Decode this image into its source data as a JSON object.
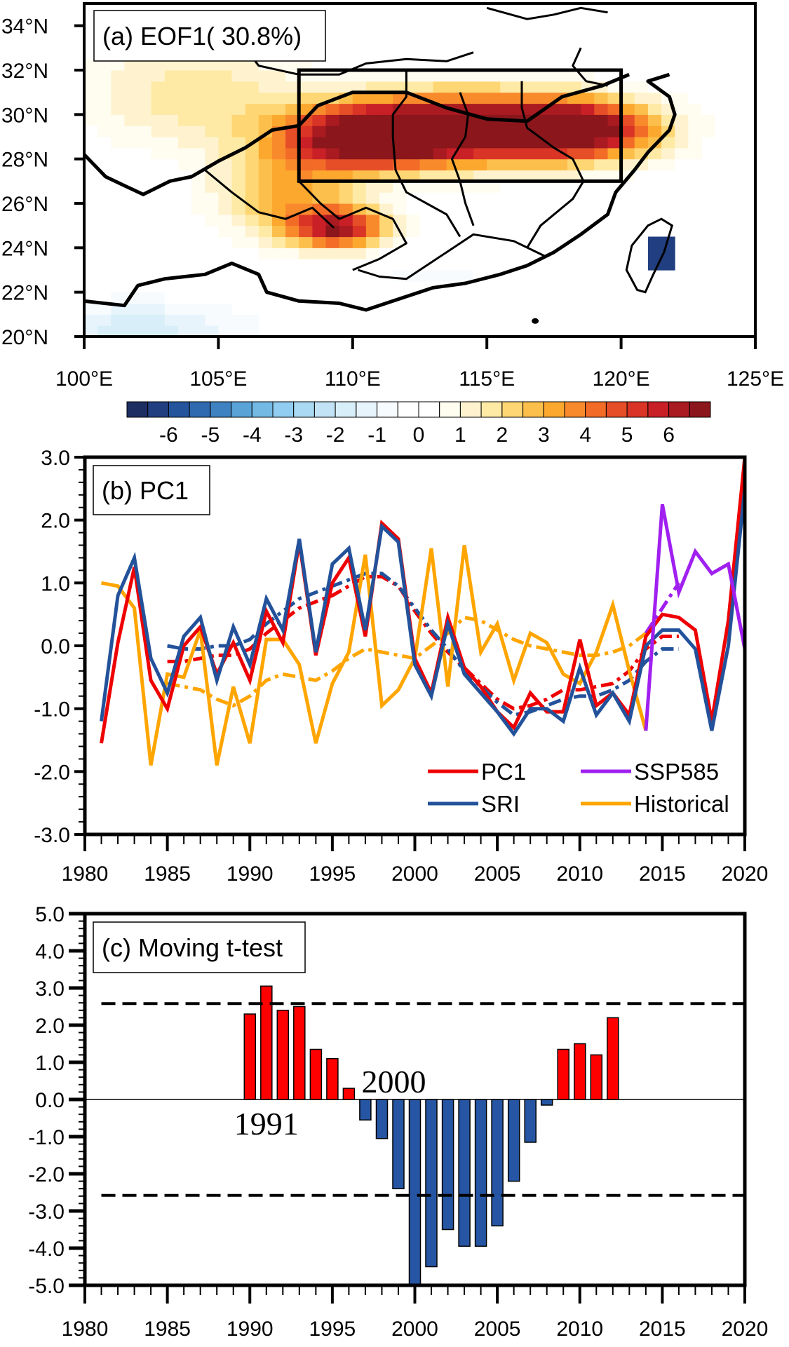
{
  "figure": {
    "panel_a": {
      "title": "(a) EOF1( 30.8%)",
      "lat_ticks": [
        "34°N",
        "32°N",
        "30°N",
        "28°N",
        "26°N",
        "24°N",
        "22°N",
        "20°N"
      ],
      "lon_ticks": [
        "100°E",
        "105°E",
        "110°E",
        "115°E",
        "120°E",
        "125°E"
      ],
      "colorbar": {
        "labels": [
          "-6",
          "-5",
          "-4",
          "-3",
          "-2",
          "-1",
          "0",
          "1",
          "2",
          "3",
          "4",
          "5",
          "6"
        ],
        "colors": [
          "#1d2e63",
          "#213f80",
          "#24559c",
          "#2f6ab0",
          "#3f82c1",
          "#5aa3d6",
          "#74b9e4",
          "#90cdf0",
          "#aad9f3",
          "#c2e3f6",
          "#d8eef9",
          "#e8f4fb",
          "#f7fbfe",
          "#ffffff",
          "#ffffff",
          "#fffcf0",
          "#fff3cf",
          "#feeaa5",
          "#fed673",
          "#fdbf4c",
          "#fca82f",
          "#f98a2c",
          "#f26b27",
          "#e64e27",
          "#d93425",
          "#c91f26",
          "#a91a21",
          "#8b161b"
        ]
      },
      "box_region": {
        "lon": [
          108,
          120
        ],
        "lat": [
          27,
          32
        ]
      }
    },
    "panel_b": {
      "title": "(b) PC1",
      "y_ticks": [
        "3.0",
        "2.0",
        "1.0",
        "0.0",
        "-1.0",
        "-2.0",
        "-3.0"
      ],
      "x_ticks": [
        "1980",
        "1985",
        "1990",
        "1995",
        "2000",
        "2005",
        "2010",
        "2015",
        "2020"
      ],
      "legend": [
        {
          "label": "PC1",
          "color": "#ee0000"
        },
        {
          "label": "SSP585",
          "color": "#a020f0"
        },
        {
          "label": "SRI",
          "color": "#23529b"
        },
        {
          "label": "Historical",
          "color": "#ffa500"
        }
      ]
    },
    "panel_c": {
      "title": "(c) Moving t-test",
      "y_ticks": [
        "5.0",
        "4.0",
        "3.0",
        "2.0",
        "1.0",
        "0.0",
        "-1.0",
        "-2.0",
        "-3.0",
        "-4.0",
        "-5.0"
      ],
      "x_ticks": [
        "1980",
        "1985",
        "1990",
        "1995",
        "2000",
        "2005",
        "2010",
        "2015",
        "2020"
      ],
      "annotations": [
        "1991",
        "2000"
      ],
      "positive_color": "#ff0000",
      "negative_color": "#2656a3"
    }
  },
  "chart_data": [
    {
      "type": "heatmap",
      "title": "(a) EOF1( 30.8%)",
      "xlabel": "",
      "ylabel": "",
      "xlim": [
        100,
        125
      ],
      "ylim": [
        20,
        35
      ],
      "x_ticks": [
        100,
        105,
        110,
        115,
        120,
        125
      ],
      "y_ticks": [
        20,
        22,
        24,
        26,
        28,
        30,
        32,
        34
      ],
      "colorbar_levels": [
        -6,
        -5,
        -4,
        -3,
        -2,
        -1,
        0,
        1,
        2,
        3,
        4,
        5,
        6
      ],
      "explained_variance_percent": 30.8,
      "highlight_box": {
        "lon": [
          108,
          120
        ],
        "lat": [
          27,
          32
        ]
      },
      "description": "Positive loading maximum (>6) along 28-31°N, 109-121°E; secondary maximum near 24.5-25.5°N, 108-111°E; weak negative values south of 22°N and over Taiwan"
    },
    {
      "type": "line",
      "title": "(b) PC1",
      "xlim": [
        1980,
        2020
      ],
      "ylim": [
        -3.0,
        3.0
      ],
      "x_ticks": [
        1980,
        1985,
        1990,
        1995,
        2000,
        2005,
        2010,
        2015,
        2020
      ],
      "y_ticks": [
        -3.0,
        -2.0,
        -1.0,
        0.0,
        1.0,
        2.0,
        3.0
      ],
      "legend_position": "bottom-right",
      "series": [
        {
          "name": "PC1",
          "color": "#ee0000",
          "style": "solid",
          "x": [
            1981,
            1982,
            1983,
            1984,
            1985,
            1986,
            1987,
            1988,
            1989,
            1990,
            1991,
            1992,
            1993,
            1994,
            1995,
            1996,
            1997,
            1998,
            1999,
            2000,
            2001,
            2002,
            2003,
            2004,
            2005,
            2006,
            2007,
            2008,
            2009,
            2010,
            2011,
            2012,
            2013,
            2014,
            2015,
            2016,
            2017,
            2018,
            2019,
            2020
          ],
          "values": [
            -1.55,
            0.05,
            1.25,
            -0.55,
            -1.0,
            0.0,
            0.3,
            -0.45,
            0.05,
            -0.55,
            0.55,
            0.05,
            1.65,
            -0.15,
            1.0,
            1.4,
            0.15,
            1.95,
            1.7,
            -0.2,
            -0.75,
            0.45,
            -0.35,
            -0.65,
            -1.05,
            -1.3,
            -0.75,
            -1.05,
            -1.05,
            0.1,
            -0.95,
            -0.75,
            -1.1,
            0.15,
            0.5,
            0.45,
            0.25,
            -1.2,
            0.4,
            3.0
          ]
        },
        {
          "name": "SRI",
          "color": "#23529b",
          "style": "solid",
          "x": [
            1981,
            1982,
            1983,
            1984,
            1985,
            1986,
            1987,
            1988,
            1989,
            1990,
            1991,
            1992,
            1993,
            1994,
            1995,
            1996,
            1997,
            1998,
            1999,
            2000,
            2001,
            2002,
            2003,
            2004,
            2005,
            2006,
            2007,
            2008,
            2009,
            2010,
            2011,
            2012,
            2013,
            2014,
            2015,
            2016,
            2017,
            2018,
            2019,
            2020
          ],
          "values": [
            -1.2,
            0.8,
            1.4,
            -0.2,
            -0.75,
            0.15,
            0.45,
            -0.55,
            0.3,
            -0.3,
            0.75,
            0.25,
            1.7,
            -0.1,
            1.3,
            1.55,
            0.25,
            1.9,
            1.65,
            -0.3,
            -0.8,
            0.35,
            -0.45,
            -0.75,
            -1.05,
            -1.4,
            -1.0,
            -1.0,
            -1.2,
            -0.35,
            -1.1,
            -0.75,
            -1.2,
            0.0,
            0.25,
            0.25,
            -0.05,
            -1.35,
            0.0,
            2.5
          ]
        },
        {
          "name": "Historical",
          "color": "#ffa500",
          "style": "solid",
          "x": [
            1981,
            1982,
            1983,
            1984,
            1985,
            1986,
            1987,
            1988,
            1989,
            1990,
            1991,
            1992,
            1993,
            1994,
            1995,
            1996,
            1997,
            1998,
            1999,
            2000,
            2001,
            2002,
            2003,
            2004,
            2005,
            2006,
            2007,
            2008,
            2009,
            2010,
            2011,
            2012,
            2013,
            2014
          ],
          "values": [
            1.0,
            0.95,
            0.6,
            -1.9,
            -0.45,
            -0.5,
            0.25,
            -1.9,
            -0.65,
            -1.55,
            0.1,
            0.1,
            -0.3,
            -1.55,
            -0.6,
            -0.1,
            1.45,
            -0.95,
            -0.7,
            -0.2,
            1.55,
            -0.65,
            1.6,
            -0.1,
            0.35,
            -0.55,
            0.2,
            0.05,
            -0.45,
            -0.6,
            -0.1,
            0.65,
            -0.4,
            -1.35
          ]
        },
        {
          "name": "SSP585",
          "color": "#a020f0",
          "style": "solid",
          "x": [
            2014,
            2015,
            2016,
            2017,
            2018,
            2019,
            2020
          ],
          "values": [
            -1.35,
            2.25,
            0.85,
            1.5,
            1.15,
            1.3,
            -0.05
          ]
        },
        {
          "name": "PC1 smoothed",
          "color": "#ee0000",
          "style": "dashed",
          "x": [
            1985,
            1986,
            1987,
            1988,
            1989,
            1990,
            1991,
            1992,
            1993,
            1994,
            1995,
            1996,
            1997,
            1998,
            1999,
            2000,
            2001,
            2002,
            2003,
            2004,
            2005,
            2006,
            2007,
            2008,
            2009,
            2010,
            2011,
            2012,
            2013,
            2014,
            2015,
            2016
          ],
          "values": [
            -0.25,
            -0.25,
            -0.2,
            -0.15,
            -0.15,
            -0.05,
            0.2,
            0.4,
            0.6,
            0.7,
            0.8,
            0.95,
            1.1,
            1.1,
            0.95,
            0.55,
            0.2,
            -0.1,
            -0.35,
            -0.6,
            -0.85,
            -1.0,
            -0.95,
            -0.85,
            -0.7,
            -0.7,
            -0.65,
            -0.6,
            -0.4,
            -0.05,
            0.15,
            0.15
          ]
        },
        {
          "name": "SRI smoothed",
          "color": "#23529b",
          "style": "dashed",
          "x": [
            1985,
            1986,
            1987,
            1988,
            1989,
            1990,
            1991,
            1992,
            1993,
            1994,
            1995,
            1996,
            1997,
            1998,
            1999,
            2000,
            2001,
            2002,
            2003,
            2004,
            2005,
            2006,
            2007,
            2008,
            2009,
            2010,
            2011,
            2012,
            2013,
            2014,
            2015,
            2016
          ],
          "values": [
            0.0,
            -0.05,
            -0.05,
            0.0,
            0.0,
            0.1,
            0.35,
            0.55,
            0.75,
            0.85,
            0.95,
            1.05,
            1.15,
            1.15,
            0.95,
            0.6,
            0.25,
            -0.05,
            -0.4,
            -0.65,
            -0.9,
            -1.1,
            -1.05,
            -0.95,
            -0.85,
            -0.8,
            -0.8,
            -0.7,
            -0.55,
            -0.25,
            -0.05,
            -0.05
          ]
        },
        {
          "name": "Historical smoothed",
          "color": "#ffa500",
          "style": "dashed",
          "x": [
            1985,
            1986,
            1987,
            1988,
            1989,
            1990,
            1991,
            1992,
            1993,
            1994,
            1995,
            1996,
            1997,
            1998,
            1999,
            2000,
            2001,
            2002,
            2003,
            2004,
            2005,
            2006,
            2007,
            2008,
            2009,
            2010,
            2011,
            2012,
            2013,
            2014
          ],
          "values": [
            -0.6,
            -0.65,
            -0.7,
            -0.85,
            -0.95,
            -0.8,
            -0.55,
            -0.45,
            -0.5,
            -0.55,
            -0.4,
            -0.2,
            -0.05,
            -0.1,
            -0.15,
            -0.2,
            0.0,
            0.2,
            0.45,
            0.4,
            0.25,
            0.1,
            0.0,
            -0.05,
            -0.1,
            -0.15,
            -0.15,
            -0.1,
            0.0,
            0.2
          ]
        },
        {
          "name": "SSP585 smoothed",
          "color": "#a020f0",
          "style": "dashed",
          "x": [
            2014,
            2015,
            2016
          ],
          "values": [
            0.2,
            0.6,
            1.0
          ]
        }
      ]
    },
    {
      "type": "bar",
      "title": "(c) Moving t-test",
      "xlim": [
        1980,
        2020
      ],
      "ylim": [
        -5.0,
        5.0
      ],
      "x_ticks": [
        1980,
        1985,
        1990,
        1995,
        2000,
        2005,
        2010,
        2015,
        2020
      ],
      "y_ticks": [
        -5.0,
        -4.0,
        -3.0,
        -2.0,
        -1.0,
        0.0,
        1.0,
        2.0,
        3.0,
        4.0,
        5.0
      ],
      "categories": [
        1990,
        1991,
        1992,
        1993,
        1994,
        1995,
        1996,
        1997,
        1998,
        1999,
        2000,
        2001,
        2002,
        2003,
        2004,
        2005,
        2006,
        2007,
        2008,
        2009,
        2010,
        2011,
        2012
      ],
      "values": [
        2.3,
        3.05,
        2.4,
        2.5,
        1.35,
        1.1,
        0.3,
        -0.55,
        -1.05,
        -2.4,
        -5.0,
        -4.5,
        -3.5,
        -3.95,
        -3.95,
        -3.4,
        -2.2,
        -1.15,
        -0.15,
        1.35,
        1.5,
        1.2,
        2.2
      ],
      "significance_thresholds": [
        2.58,
        -2.58
      ],
      "annotations": [
        {
          "text": "1991",
          "x": 1991
        },
        {
          "text": "2000",
          "x": 2000
        }
      ]
    }
  ]
}
